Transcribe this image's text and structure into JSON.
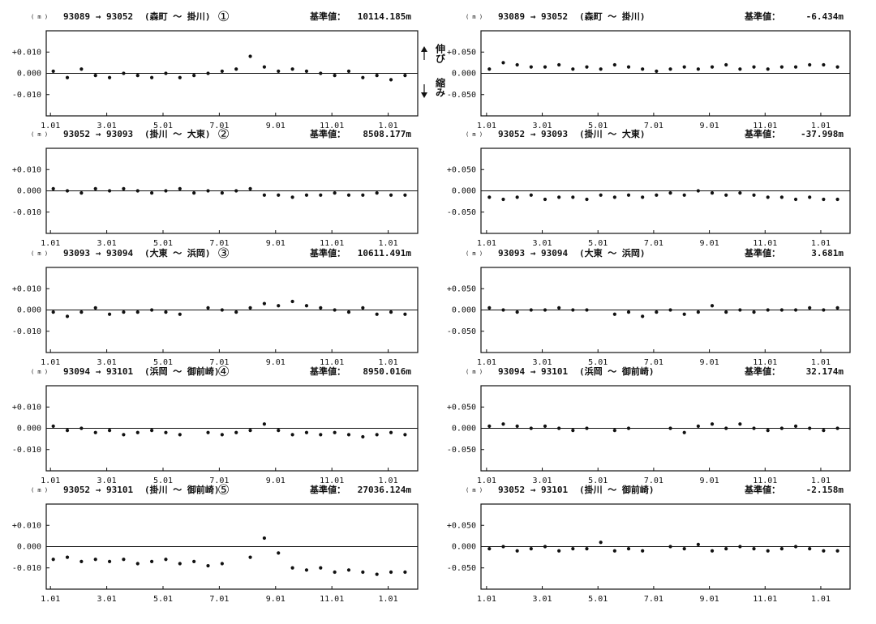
{
  "chart_data": [
    {
      "type": "scatter",
      "unit": "( m )",
      "title": "93089 → 93052",
      "subtitle": "(森町 ～ 掛川)",
      "number": "①",
      "base_label": "基準値：",
      "base_value": "10114.185m",
      "annotations": [
        "伸び",
        "縮み"
      ],
      "x": [
        0.1,
        0.6,
        1.1,
        1.6,
        2.1,
        2.6,
        3.1,
        3.6,
        4.1,
        4.6,
        5.1,
        5.6,
        6.1,
        6.6,
        7.1,
        7.6,
        8.1,
        8.6,
        9.1,
        9.6,
        10.1,
        10.6,
        11.1,
        11.6,
        12.1,
        12.6
      ],
      "values": [
        0.001,
        -0.002,
        0.002,
        -0.001,
        -0.002,
        0.0,
        -0.001,
        -0.002,
        0.0,
        -0.002,
        -0.001,
        0.0,
        0.001,
        0.002,
        0.008,
        0.003,
        0.001,
        0.002,
        0.001,
        0.0,
        -0.001,
        0.001,
        -0.002,
        -0.001,
        -0.003,
        -0.001
      ],
      "color": "#111111",
      "xlim": [
        -0.15,
        13.05
      ],
      "ylim": [
        -0.02,
        0.02
      ],
      "xticks": [
        {
          "value": 0,
          "label": "1.01"
        },
        {
          "value": 2,
          "label": "3.01"
        },
        {
          "value": 4,
          "label": "5.01"
        },
        {
          "value": 6,
          "label": "7.01"
        },
        {
          "value": 8,
          "label": "9.01"
        },
        {
          "value": 10,
          "label": "11.01"
        },
        {
          "value": 12,
          "label": "1.01"
        }
      ],
      "yticks": [
        {
          "value": 0.01,
          "label": "+0.010"
        },
        {
          "value": 0,
          "label": "0.000"
        },
        {
          "value": -0.01,
          "label": "-0.010"
        }
      ]
    },
    {
      "type": "scatter",
      "unit": "( m )",
      "title": "93052 → 93093",
      "subtitle": "(掛川 ～ 大東)",
      "number": "②",
      "base_label": "基準値：",
      "base_value": "8508.177m",
      "x": [
        0.1,
        0.6,
        1.1,
        1.6,
        2.1,
        2.6,
        3.1,
        3.6,
        4.1,
        4.6,
        5.1,
        5.6,
        6.1,
        6.6,
        7.1,
        7.6,
        8.1,
        8.6,
        9.1,
        9.6,
        10.1,
        10.6,
        11.1,
        11.6,
        12.1,
        12.6
      ],
      "values": [
        0.001,
        0.0,
        -0.001,
        0.001,
        0.0,
        0.001,
        0.0,
        -0.001,
        0.0,
        0.001,
        -0.001,
        0.0,
        -0.001,
        0.0,
        0.001,
        -0.002,
        -0.002,
        -0.003,
        -0.002,
        -0.002,
        -0.001,
        -0.002,
        -0.002,
        -0.001,
        -0.002,
        -0.002
      ],
      "color": "#111111",
      "xlim": [
        -0.15,
        13.05
      ],
      "ylim": [
        -0.02,
        0.02
      ],
      "xticks": [
        {
          "value": 0,
          "label": "1.01"
        },
        {
          "value": 2,
          "label": "3.01"
        },
        {
          "value": 4,
          "label": "5.01"
        },
        {
          "value": 6,
          "label": "7.01"
        },
        {
          "value": 8,
          "label": "9.01"
        },
        {
          "value": 10,
          "label": "11.01"
        },
        {
          "value": 12,
          "label": "1.01"
        }
      ],
      "yticks": [
        {
          "value": 0.01,
          "label": "+0.010"
        },
        {
          "value": 0,
          "label": "0.000"
        },
        {
          "value": -0.01,
          "label": "-0.010"
        }
      ]
    },
    {
      "type": "scatter",
      "unit": "( m )",
      "title": "93093 → 93094",
      "subtitle": "(大東 ～ 浜岡)",
      "number": "③",
      "base_label": "基準値：",
      "base_value": "10611.491m",
      "x": [
        0.1,
        0.6,
        1.1,
        1.6,
        2.1,
        2.6,
        3.1,
        3.6,
        4.1,
        4.6,
        5.1,
        5.6,
        6.1,
        6.6,
        7.1,
        7.6,
        8.1,
        8.6,
        9.1,
        9.6,
        10.1,
        10.6,
        11.1,
        11.6,
        12.1,
        12.6
      ],
      "values": [
        -0.001,
        -0.003,
        -0.001,
        0.001,
        -0.002,
        -0.001,
        -0.001,
        0.0,
        -0.001,
        -0.002,
        null,
        0.001,
        0.0,
        -0.001,
        0.001,
        0.003,
        0.002,
        0.004,
        0.002,
        0.001,
        0.0,
        -0.001,
        0.001,
        -0.002,
        -0.001,
        -0.002
      ],
      "color": "#111111",
      "xlim": [
        -0.15,
        13.05
      ],
      "ylim": [
        -0.02,
        0.02
      ],
      "xticks": [
        {
          "value": 0,
          "label": "1.01"
        },
        {
          "value": 2,
          "label": "3.01"
        },
        {
          "value": 4,
          "label": "5.01"
        },
        {
          "value": 6,
          "label": "7.01"
        },
        {
          "value": 8,
          "label": "9.01"
        },
        {
          "value": 10,
          "label": "11.01"
        },
        {
          "value": 12,
          "label": "1.01"
        }
      ],
      "yticks": [
        {
          "value": 0.01,
          "label": "+0.010"
        },
        {
          "value": 0,
          "label": "0.000"
        },
        {
          "value": -0.01,
          "label": "-0.010"
        }
      ]
    },
    {
      "type": "scatter",
      "unit": "( m )",
      "title": "93094 → 93101",
      "subtitle": "(浜岡 ～ 御前崎)",
      "number": "④",
      "base_label": "基準値：",
      "base_value": "8950.016m",
      "x": [
        0.1,
        0.6,
        1.1,
        1.6,
        2.1,
        2.6,
        3.1,
        3.6,
        4.1,
        4.6,
        5.1,
        5.6,
        6.1,
        6.6,
        7.1,
        7.6,
        8.1,
        8.6,
        9.1,
        9.6,
        10.1,
        10.6,
        11.1,
        11.6,
        12.1,
        12.6
      ],
      "values": [
        0.001,
        -0.001,
        0.0,
        -0.002,
        -0.001,
        -0.003,
        -0.002,
        -0.001,
        -0.002,
        -0.003,
        null,
        -0.002,
        -0.003,
        -0.002,
        -0.001,
        0.002,
        -0.001,
        -0.003,
        -0.002,
        -0.003,
        -0.002,
        -0.003,
        -0.004,
        -0.003,
        -0.002,
        -0.003
      ],
      "color": "#111111",
      "xlim": [
        -0.15,
        13.05
      ],
      "ylim": [
        -0.02,
        0.02
      ],
      "xticks": [
        {
          "value": 0,
          "label": "1.01"
        },
        {
          "value": 2,
          "label": "3.01"
        },
        {
          "value": 4,
          "label": "5.01"
        },
        {
          "value": 6,
          "label": "7.01"
        },
        {
          "value": 8,
          "label": "9.01"
        },
        {
          "value": 10,
          "label": "11.01"
        },
        {
          "value": 12,
          "label": "1.01"
        }
      ],
      "yticks": [
        {
          "value": 0.01,
          "label": "+0.010"
        },
        {
          "value": 0,
          "label": "0.000"
        },
        {
          "value": -0.01,
          "label": "-0.010"
        }
      ]
    },
    {
      "type": "scatter",
      "unit": "( m )",
      "title": "93052 → 93101",
      "subtitle": "(掛川 ～ 御前崎)",
      "number": "⑤",
      "base_label": "基準値：",
      "base_value": "27036.124m",
      "x": [
        0.1,
        0.6,
        1.1,
        1.6,
        2.1,
        2.6,
        3.1,
        3.6,
        4.1,
        4.6,
        5.1,
        5.6,
        6.1,
        6.6,
        7.1,
        7.6,
        8.1,
        8.6,
        9.1,
        9.6,
        10.1,
        10.6,
        11.1,
        11.6,
        12.1,
        12.6
      ],
      "values": [
        -0.006,
        -0.005,
        -0.007,
        -0.006,
        -0.007,
        -0.006,
        -0.008,
        -0.007,
        -0.006,
        -0.008,
        -0.007,
        -0.009,
        -0.008,
        null,
        -0.005,
        0.004,
        -0.003,
        -0.01,
        -0.011,
        -0.01,
        -0.012,
        -0.011,
        -0.012,
        -0.013,
        -0.012,
        -0.012
      ],
      "color": "#111111",
      "xlim": [
        -0.15,
        13.05
      ],
      "ylim": [
        -0.02,
        0.02
      ],
      "xticks": [
        {
          "value": 0,
          "label": "1.01"
        },
        {
          "value": 2,
          "label": "3.01"
        },
        {
          "value": 4,
          "label": "5.01"
        },
        {
          "value": 6,
          "label": "7.01"
        },
        {
          "value": 8,
          "label": "9.01"
        },
        {
          "value": 10,
          "label": "11.01"
        },
        {
          "value": 12,
          "label": "1.01"
        }
      ],
      "yticks": [
        {
          "value": 0.01,
          "label": "+0.010"
        },
        {
          "value": 0,
          "label": "0.000"
        },
        {
          "value": -0.01,
          "label": "-0.010"
        }
      ]
    },
    {
      "type": "scatter",
      "unit": "( m )",
      "title": "93089 → 93052",
      "subtitle": "(森町 ～ 掛川)",
      "base_label": "基準値：",
      "base_value": "-6.434m",
      "x": [
        0.1,
        0.6,
        1.1,
        1.6,
        2.1,
        2.6,
        3.1,
        3.6,
        4.1,
        4.6,
        5.1,
        5.6,
        6.1,
        6.6,
        7.1,
        7.6,
        8.1,
        8.6,
        9.1,
        9.6,
        10.1,
        10.6,
        11.1,
        11.6,
        12.1,
        12.6
      ],
      "values": [
        0.01,
        0.025,
        0.02,
        0.015,
        0.015,
        0.02,
        0.01,
        0.015,
        0.01,
        0.02,
        0.015,
        0.01,
        0.005,
        0.01,
        0.015,
        0.01,
        0.015,
        0.02,
        0.01,
        0.015,
        0.01,
        0.015,
        0.015,
        0.02,
        0.02,
        0.015
      ],
      "color": "#111111",
      "xlim": [
        -0.2,
        13.05
      ],
      "ylim": [
        -0.1,
        0.1
      ],
      "xticks": [
        {
          "value": 0,
          "label": "1.01"
        },
        {
          "value": 2,
          "label": "3.01"
        },
        {
          "value": 4,
          "label": "5.01"
        },
        {
          "value": 6,
          "label": "7.01"
        },
        {
          "value": 8,
          "label": "9.01"
        },
        {
          "value": 10,
          "label": "11.01"
        },
        {
          "value": 12,
          "label": "1.01"
        }
      ],
      "yticks": [
        {
          "value": 0.05,
          "label": "+0.050"
        },
        {
          "value": 0,
          "label": "0.000"
        },
        {
          "value": -0.05,
          "label": "-0.050"
        }
      ]
    },
    {
      "type": "scatter",
      "unit": "( m )",
      "title": "93052 → 93093",
      "subtitle": "(掛川 ～ 大東)",
      "base_label": "基準値：",
      "base_value": "-37.998m",
      "x": [
        0.1,
        0.6,
        1.1,
        1.6,
        2.1,
        2.6,
        3.1,
        3.6,
        4.1,
        4.6,
        5.1,
        5.6,
        6.1,
        6.6,
        7.1,
        7.6,
        8.1,
        8.6,
        9.1,
        9.6,
        10.1,
        10.6,
        11.1,
        11.6,
        12.1,
        12.6
      ],
      "values": [
        -0.015,
        -0.02,
        -0.015,
        -0.01,
        -0.02,
        -0.015,
        -0.015,
        -0.02,
        -0.01,
        -0.015,
        -0.01,
        -0.015,
        -0.01,
        -0.005,
        -0.01,
        0.0,
        -0.005,
        -0.01,
        -0.005,
        -0.01,
        -0.015,
        -0.015,
        -0.02,
        -0.015,
        -0.02,
        -0.02
      ],
      "color": "#111111",
      "xlim": [
        -0.2,
        13.05
      ],
      "ylim": [
        -0.1,
        0.1
      ],
      "xticks": [
        {
          "value": 0,
          "label": "1.01"
        },
        {
          "value": 2,
          "label": "3.01"
        },
        {
          "value": 4,
          "label": "5.01"
        },
        {
          "value": 6,
          "label": "7.01"
        },
        {
          "value": 8,
          "label": "9.01"
        },
        {
          "value": 10,
          "label": "11.01"
        },
        {
          "value": 12,
          "label": "1.01"
        }
      ],
      "yticks": [
        {
          "value": 0.05,
          "label": "+0.050"
        },
        {
          "value": 0,
          "label": "0.000"
        },
        {
          "value": -0.05,
          "label": "-0.050"
        }
      ]
    },
    {
      "type": "scatter",
      "unit": "( m )",
      "title": "93093 → 93094",
      "subtitle": "(大東 ～ 浜岡)",
      "base_label": "基準値：",
      "base_value": "3.681m",
      "x": [
        0.1,
        0.6,
        1.1,
        1.6,
        2.1,
        2.6,
        3.1,
        3.6,
        4.1,
        4.6,
        5.1,
        5.6,
        6.1,
        6.6,
        7.1,
        7.6,
        8.1,
        8.6,
        9.1,
        9.6,
        10.1,
        10.6,
        11.1,
        11.6,
        12.1,
        12.6
      ],
      "values": [
        0.005,
        0.0,
        -0.005,
        0.0,
        0.0,
        0.005,
        0.0,
        0.0,
        null,
        -0.01,
        -0.005,
        -0.015,
        -0.005,
        0.0,
        -0.01,
        -0.005,
        0.01,
        -0.005,
        0.0,
        -0.005,
        0.0,
        0.0,
        0.0,
        0.005,
        0.0,
        0.005
      ],
      "color": "#111111",
      "xlim": [
        -0.2,
        13.05
      ],
      "ylim": [
        -0.1,
        0.1
      ],
      "xticks": [
        {
          "value": 0,
          "label": "1.01"
        },
        {
          "value": 2,
          "label": "3.01"
        },
        {
          "value": 4,
          "label": "5.01"
        },
        {
          "value": 6,
          "label": "7.01"
        },
        {
          "value": 8,
          "label": "9.01"
        },
        {
          "value": 10,
          "label": "11.01"
        },
        {
          "value": 12,
          "label": "1.01"
        }
      ],
      "yticks": [
        {
          "value": 0.05,
          "label": "+0.050"
        },
        {
          "value": 0,
          "label": "0.000"
        },
        {
          "value": -0.05,
          "label": "-0.050"
        }
      ]
    },
    {
      "type": "scatter",
      "unit": "( m )",
      "title": "93094 → 93101",
      "subtitle": "(浜岡 ～ 御前崎)",
      "base_label": "基準値：",
      "base_value": "32.174m",
      "x": [
        0.1,
        0.6,
        1.1,
        1.6,
        2.1,
        2.6,
        3.1,
        3.6,
        4.1,
        4.6,
        5.1,
        5.6,
        6.1,
        6.6,
        7.1,
        7.6,
        8.1,
        8.6,
        9.1,
        9.6,
        10.1,
        10.6,
        11.1,
        11.6,
        12.1,
        12.6
      ],
      "values": [
        0.005,
        0.01,
        0.005,
        0.0,
        0.005,
        0.0,
        -0.005,
        0.0,
        null,
        -0.005,
        0.0,
        null,
        null,
        0.0,
        -0.01,
        0.005,
        0.01,
        0.0,
        0.01,
        0.0,
        -0.005,
        0.0,
        0.005,
        0.0,
        -0.005,
        0.0
      ],
      "color": "#111111",
      "xlim": [
        -0.2,
        13.05
      ],
      "ylim": [
        -0.1,
        0.1
      ],
      "xticks": [
        {
          "value": 0,
          "label": "1.01"
        },
        {
          "value": 2,
          "label": "3.01"
        },
        {
          "value": 4,
          "label": "5.01"
        },
        {
          "value": 6,
          "label": "7.01"
        },
        {
          "value": 8,
          "label": "9.01"
        },
        {
          "value": 10,
          "label": "11.01"
        },
        {
          "value": 12,
          "label": "1.01"
        }
      ],
      "yticks": [
        {
          "value": 0.05,
          "label": "+0.050"
        },
        {
          "value": 0,
          "label": "0.000"
        },
        {
          "value": -0.05,
          "label": "-0.050"
        }
      ]
    },
    {
      "type": "scatter",
      "unit": "( m )",
      "title": "93052 → 93101",
      "subtitle": "(掛川 ～ 御前崎)",
      "base_label": "基準値：",
      "base_value": "-2.158m",
      "x": [
        0.1,
        0.6,
        1.1,
        1.6,
        2.1,
        2.6,
        3.1,
        3.6,
        4.1,
        4.6,
        5.1,
        5.6,
        6.1,
        6.6,
        7.1,
        7.6,
        8.1,
        8.6,
        9.1,
        9.6,
        10.1,
        10.6,
        11.1,
        11.6,
        12.1,
        12.6
      ],
      "values": [
        -0.005,
        0.0,
        -0.01,
        -0.005,
        0.0,
        -0.01,
        -0.005,
        -0.005,
        0.01,
        -0.01,
        -0.005,
        -0.01,
        null,
        0.0,
        -0.005,
        0.005,
        -0.01,
        -0.005,
        0.0,
        -0.005,
        -0.01,
        -0.005,
        0.0,
        -0.005,
        -0.01,
        -0.01
      ],
      "color": "#111111",
      "xlim": [
        -0.2,
        13.05
      ],
      "ylim": [
        -0.1,
        0.1
      ],
      "xticks": [
        {
          "value": 0,
          "label": "1.01"
        },
        {
          "value": 2,
          "label": "3.01"
        },
        {
          "value": 4,
          "label": "5.01"
        },
        {
          "value": 6,
          "label": "7.01"
        },
        {
          "value": 8,
          "label": "9.01"
        },
        {
          "value": 10,
          "label": "11.01"
        },
        {
          "value": 12,
          "label": "1.01"
        }
      ],
      "yticks": [
        {
          "value": 0.05,
          "label": "+0.050"
        },
        {
          "value": 0,
          "label": "0.000"
        },
        {
          "value": -0.05,
          "label": "-0.050"
        }
      ]
    }
  ]
}
